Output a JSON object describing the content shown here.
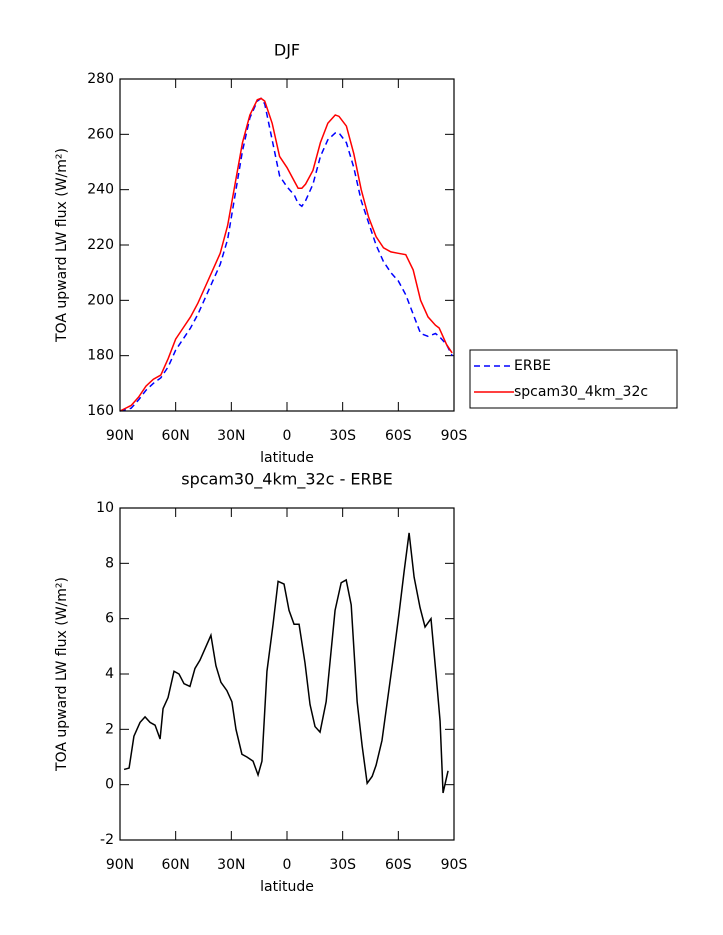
{
  "chart_data": [
    {
      "type": "line",
      "title": "DJF",
      "xlabel": "latitude",
      "ylabel": "TOA upward LW flux (W/m²)",
      "xlim": [
        90,
        -90
      ],
      "xticks": [
        {
          "value": 90,
          "label": "90N"
        },
        {
          "value": 60,
          "label": "60N"
        },
        {
          "value": 30,
          "label": "30N"
        },
        0,
        {
          "value": -30,
          "label": "30S"
        },
        {
          "value": -60,
          "label": "60S"
        },
        {
          "value": -90,
          "label": "90S"
        }
      ],
      "ylim": [
        160,
        280
      ],
      "yticks": [
        160,
        180,
        200,
        220,
        240,
        260,
        280
      ],
      "legend": "right",
      "x": [
        90,
        84,
        80,
        76,
        72,
        68,
        64,
        60,
        56,
        52,
        48,
        44,
        40,
        36,
        32,
        28,
        24,
        20,
        16,
        14,
        12,
        8,
        4,
        0,
        -4,
        -6,
        -8,
        -10,
        -14,
        -18,
        -22,
        -26,
        -28,
        -32,
        -36,
        -40,
        -44,
        -48,
        -52,
        -56,
        -60,
        -64,
        -68,
        -72,
        -76,
        -80,
        -82,
        -86,
        -89
      ],
      "series": [
        {
          "name": "ERBE",
          "color": "#0000ff",
          "dash": "dashed",
          "values": [
            160,
            161,
            164,
            167.5,
            170,
            172,
            176,
            182,
            186,
            190,
            195,
            201,
            207,
            213,
            222,
            238,
            254,
            266,
            272,
            273,
            271,
            258,
            245,
            241,
            238,
            235,
            234,
            236,
            242,
            252,
            258,
            260.5,
            260.5,
            257,
            248,
            236,
            228,
            220,
            214,
            210,
            207,
            202,
            195,
            188,
            187,
            188,
            187,
            184,
            180
          ]
        },
        {
          "name": "spcam30_4km_32c",
          "color": "#ff0000",
          "dash": "solid",
          "values": [
            160,
            162,
            165,
            169,
            171.5,
            173,
            179,
            186,
            190,
            194,
            199,
            205,
            211,
            217,
            227,
            242,
            257,
            267,
            272.5,
            273,
            272,
            264,
            252,
            248,
            243,
            240.5,
            240.5,
            242,
            247,
            257,
            264,
            267,
            266.5,
            263,
            253,
            240,
            230,
            223,
            219,
            217.5,
            217,
            216.5,
            211,
            200,
            194,
            191,
            190,
            184,
            181
          ]
        }
      ]
    },
    {
      "type": "line",
      "title": "spcam30_4km_32c - ERBE",
      "xlabel": "latitude",
      "ylabel": "TOA upward LW flux (W/m²)",
      "xlim": [
        90,
        -90
      ],
      "xticks": [
        {
          "value": 90,
          "label": "90N"
        },
        {
          "value": 60,
          "label": "60N"
        },
        {
          "value": 30,
          "label": "30N"
        },
        0,
        {
          "value": -30,
          "label": "30S"
        },
        {
          "value": -60,
          "label": "60S"
        },
        {
          "value": -90,
          "label": "90S"
        }
      ],
      "ylim": [
        -2,
        10
      ],
      "yticks": [
        -2,
        0,
        2,
        4,
        6,
        8,
        10
      ],
      "x": [
        87.8,
        85.1,
        82.5,
        79.2,
        76.5,
        73.8,
        71.1,
        68.4,
        66.8,
        64.1,
        60.9,
        58.2,
        55.5,
        52.3,
        49.6,
        46.9,
        41.0,
        38.3,
        35.6,
        32.4,
        29.7,
        27.5,
        24.3,
        21.6,
        18.3,
        15.6,
        13.5,
        10.8,
        7.5,
        4.8,
        1.6,
        -1.1,
        -3.8,
        -6.5,
        -9.7,
        -12.4,
        -15.1,
        -17.8,
        -21.1,
        -25.9,
        -29.2,
        -31.9,
        -34.6,
        -37.8,
        -40.5,
        -43.2,
        -45.9,
        -48.0,
        -51.2,
        -57.1,
        -60.4,
        -63.1,
        -65.8,
        -68.5,
        -71.7,
        -74.4,
        -77.6,
        -80.3,
        -82.5,
        -84.1,
        -86.8
      ],
      "series": [
        {
          "color": "#000000",
          "dash": "solid",
          "values": [
            0.55,
            0.6,
            1.75,
            2.25,
            2.45,
            2.25,
            2.15,
            1.65,
            2.75,
            3.15,
            4.1,
            4.0,
            3.65,
            3.55,
            4.2,
            4.5,
            5.4,
            4.3,
            3.7,
            3.4,
            3.0,
            2.0,
            1.1,
            1.0,
            0.85,
            0.35,
            0.85,
            4.1,
            5.8,
            7.35,
            7.25,
            6.3,
            5.8,
            5.8,
            4.4,
            2.9,
            2.1,
            1.9,
            3.0,
            6.3,
            7.3,
            7.4,
            6.5,
            3.0,
            1.4,
            0.05,
            0.3,
            0.7,
            1.6,
            4.5,
            6.2,
            7.7,
            9.1,
            7.5,
            6.4,
            5.7,
            6.0,
            4.0,
            2.3,
            -0.3,
            0.5
          ]
        }
      ]
    }
  ]
}
